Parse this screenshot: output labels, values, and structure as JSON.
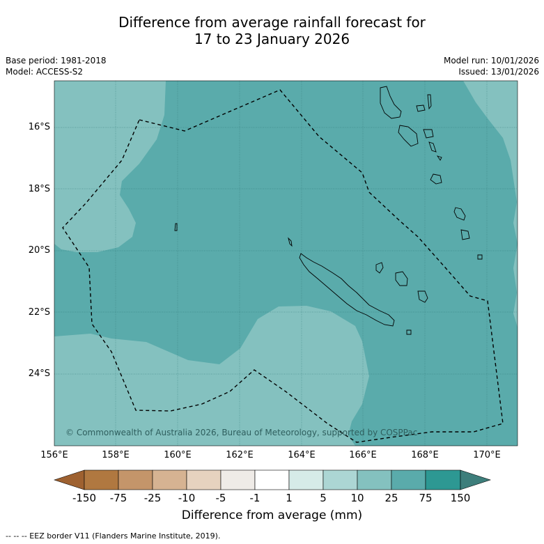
{
  "title": {
    "line1": "Difference from average rainfall forecast for",
    "line2": "17 to 23 January 2026"
  },
  "info": {
    "base_period": "Base period: 1981-2018",
    "model": "Model: ACCESS-S2",
    "model_run": "Model run: 10/01/2026",
    "issued": "Issued: 13/01/2026"
  },
  "map": {
    "lat_labels": [
      "16°S",
      "18°S",
      "20°S",
      "22°S",
      "24°S"
    ],
    "lon_labels": [
      "156°E",
      "158°E",
      "160°E",
      "162°E",
      "164°E",
      "166°E",
      "168°E",
      "170°E"
    ],
    "copyright": "© Commonwealth of Australia 2026, Bureau of Meteorology, supported by COSPPac",
    "colors": {
      "category_10_25": "#84c1bf",
      "category_25_75": "#5aabab",
      "border_line": "#000000"
    }
  },
  "colorbar": {
    "title": "Difference from average (mm)",
    "tick_labels": [
      "-150",
      "-75",
      "-25",
      "-10",
      "-5",
      "-1",
      "1",
      "5",
      "10",
      "25",
      "75",
      "150"
    ],
    "colors": [
      "#9e6130",
      "#b07840",
      "#c4956a",
      "#d6b392",
      "#e6d2bf",
      "#efebe7",
      "#ffffff",
      "#d6ebe8",
      "#acd6d4",
      "#84c1bf",
      "#5aabab",
      "#2d9893",
      "#3d7e7b"
    ]
  },
  "footnote": "-- -- -- EEZ border V11 (Flanders Marine Institute, 2019)."
}
